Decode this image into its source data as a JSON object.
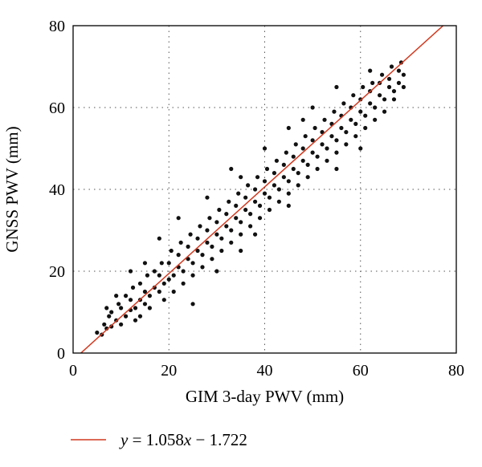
{
  "chart_data": {
    "type": "scatter",
    "xlabel": "GIM 3-day PWV (mm)",
    "ylabel": "GNSS PWV (mm)",
    "xlim": [
      0,
      80
    ],
    "ylim": [
      0,
      80
    ],
    "xticks": [
      "0",
      "20",
      "40",
      "60",
      "80"
    ],
    "yticks": [
      "0",
      "20",
      "40",
      "60",
      "80"
    ],
    "grid": true,
    "legend_position": "bottom-left, below plot",
    "point_color": "#111111",
    "fit_line_color": "#d2391f",
    "fit": {
      "slope": 1.058,
      "intercept": -1.722
    },
    "legend": {
      "prefix": "y",
      "equation": " = 1.058",
      "variable": "x",
      "rest": " − 1.722"
    },
    "points": [
      [
        5,
        5
      ],
      [
        6,
        4.5
      ],
      [
        6.5,
        7
      ],
      [
        7,
        6
      ],
      [
        7.5,
        9
      ],
      [
        8,
        6.5
      ],
      [
        8,
        10
      ],
      [
        9,
        8
      ],
      [
        9.5,
        12
      ],
      [
        10,
        7
      ],
      [
        10,
        11
      ],
      [
        11,
        9
      ],
      [
        11,
        14
      ],
      [
        12,
        10.5
      ],
      [
        12,
        13
      ],
      [
        12.5,
        16
      ],
      [
        13,
        11
      ],
      [
        13,
        8
      ],
      [
        14,
        13
      ],
      [
        14,
        17
      ],
      [
        15,
        12
      ],
      [
        15,
        15
      ],
      [
        15.5,
        19
      ],
      [
        16,
        14
      ],
      [
        16,
        11
      ],
      [
        17,
        16
      ],
      [
        17,
        20
      ],
      [
        18,
        15
      ],
      [
        18,
        19
      ],
      [
        18.5,
        22
      ],
      [
        19,
        17
      ],
      [
        19,
        13
      ],
      [
        20,
        18
      ],
      [
        20,
        22
      ],
      [
        20.5,
        25
      ],
      [
        21,
        19
      ],
      [
        21,
        15
      ],
      [
        22,
        21
      ],
      [
        22,
        24
      ],
      [
        22.5,
        27
      ],
      [
        23,
        20
      ],
      [
        23,
        17
      ],
      [
        24,
        23
      ],
      [
        24,
        26
      ],
      [
        24.5,
        29
      ],
      [
        25,
        22
      ],
      [
        25,
        19
      ],
      [
        26,
        25
      ],
      [
        26,
        28
      ],
      [
        26.5,
        31
      ],
      [
        27,
        24
      ],
      [
        27,
        21
      ],
      [
        28,
        27
      ],
      [
        28,
        30
      ],
      [
        28.5,
        33
      ],
      [
        29,
        26
      ],
      [
        29,
        23
      ],
      [
        30,
        29
      ],
      [
        30,
        32
      ],
      [
        30.5,
        35
      ],
      [
        31,
        28
      ],
      [
        31,
        25
      ],
      [
        32,
        31
      ],
      [
        32,
        34
      ],
      [
        32.5,
        37
      ],
      [
        33,
        30
      ],
      [
        33,
        27
      ],
      [
        34,
        33
      ],
      [
        34,
        36
      ],
      [
        34.5,
        39
      ],
      [
        35,
        32
      ],
      [
        35,
        29
      ],
      [
        36,
        35
      ],
      [
        36,
        38
      ],
      [
        36.5,
        41
      ],
      [
        37,
        34
      ],
      [
        37,
        31
      ],
      [
        38,
        37
      ],
      [
        38,
        40
      ],
      [
        38.5,
        43
      ],
      [
        39,
        36
      ],
      [
        39,
        33
      ],
      [
        40,
        39
      ],
      [
        40,
        42
      ],
      [
        40.5,
        45
      ],
      [
        41,
        38
      ],
      [
        41,
        35
      ],
      [
        42,
        41
      ],
      [
        42,
        44
      ],
      [
        42.5,
        47
      ],
      [
        43,
        40
      ],
      [
        43,
        37
      ],
      [
        44,
        43
      ],
      [
        44,
        46
      ],
      [
        44.5,
        49
      ],
      [
        45,
        42
      ],
      [
        45,
        39
      ],
      [
        46,
        45
      ],
      [
        46,
        48
      ],
      [
        46.5,
        51
      ],
      [
        47,
        44
      ],
      [
        47,
        41
      ],
      [
        48,
        47
      ],
      [
        48,
        50
      ],
      [
        48.5,
        53
      ],
      [
        49,
        46
      ],
      [
        49,
        43
      ],
      [
        50,
        49
      ],
      [
        50,
        52
      ],
      [
        50.5,
        55
      ],
      [
        51,
        48
      ],
      [
        51,
        45
      ],
      [
        52,
        51
      ],
      [
        52,
        54
      ],
      [
        52.5,
        57
      ],
      [
        53,
        50
      ],
      [
        53,
        47
      ],
      [
        54,
        53
      ],
      [
        54,
        56
      ],
      [
        54.5,
        59
      ],
      [
        55,
        52
      ],
      [
        55,
        49
      ],
      [
        56,
        55
      ],
      [
        56,
        58
      ],
      [
        56.5,
        61
      ],
      [
        57,
        54
      ],
      [
        57,
        51
      ],
      [
        58,
        57
      ],
      [
        58,
        60
      ],
      [
        58.5,
        63
      ],
      [
        59,
        56
      ],
      [
        59,
        53
      ],
      [
        60,
        59
      ],
      [
        60,
        62
      ],
      [
        60.5,
        65
      ],
      [
        61,
        58
      ],
      [
        61,
        55
      ],
      [
        62,
        61
      ],
      [
        62,
        64
      ],
      [
        62.5,
        66
      ],
      [
        63,
        60
      ],
      [
        63,
        57
      ],
      [
        64,
        63
      ],
      [
        64,
        66
      ],
      [
        64.5,
        68
      ],
      [
        65,
        62
      ],
      [
        65,
        59
      ],
      [
        66,
        65
      ],
      [
        66,
        67
      ],
      [
        66.5,
        70
      ],
      [
        67,
        64
      ],
      [
        67,
        62
      ],
      [
        68,
        66
      ],
      [
        68,
        69
      ],
      [
        68.5,
        71
      ],
      [
        69,
        68
      ],
      [
        69,
        65
      ],
      [
        22,
        33
      ],
      [
        28,
        38
      ],
      [
        35,
        43
      ],
      [
        40,
        50
      ],
      [
        45,
        55
      ],
      [
        50,
        60
      ],
      [
        55,
        65
      ],
      [
        15,
        22
      ],
      [
        30,
        20
      ],
      [
        35,
        25
      ],
      [
        45,
        36
      ],
      [
        55,
        45
      ],
      [
        60,
        50
      ],
      [
        25,
        12
      ],
      [
        12,
        20
      ],
      [
        18,
        28
      ],
      [
        33,
        45
      ],
      [
        48,
        57
      ],
      [
        62,
        69
      ],
      [
        9,
        14
      ],
      [
        7,
        11
      ],
      [
        14,
        9
      ],
      [
        38,
        29
      ]
    ]
  }
}
